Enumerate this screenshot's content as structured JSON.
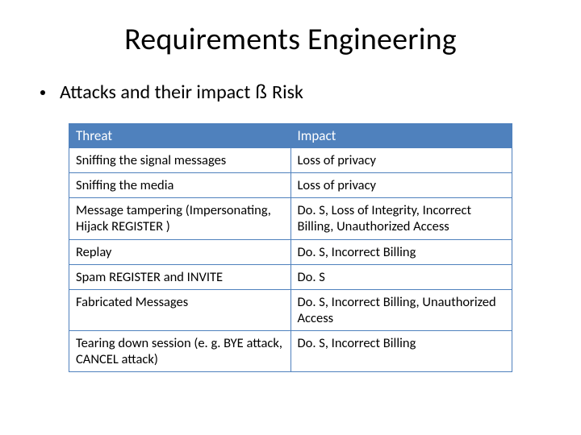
{
  "title": "Requirements Engineering",
  "bullet": {
    "left": "Attacks and their impact",
    "arrow": "ß",
    "right": "Risk"
  },
  "table": {
    "header_bg": "#4f81bd",
    "header_fg": "#ffffff",
    "border_color": "#4f81bd",
    "columns": [
      "Threat",
      "Impact"
    ],
    "rows": [
      [
        "Sniffing the signal messages",
        "Loss of privacy"
      ],
      [
        "Sniffing the media",
        "Loss of privacy"
      ],
      [
        "Message tampering (Impersonating, Hijack REGISTER )",
        "Do. S, Loss of Integrity, Incorrect Billing, Unauthorized Access"
      ],
      [
        "Replay",
        "Do. S, Incorrect Billing"
      ],
      [
        "Spam REGISTER and INVITE",
        "Do. S"
      ],
      [
        "Fabricated Messages",
        "Do. S,  Incorrect Billing, Unauthorized Access"
      ],
      [
        "Tearing down session (e. g. BYE attack, CANCEL attack)",
        "Do. S,  Incorrect Billing"
      ]
    ]
  }
}
